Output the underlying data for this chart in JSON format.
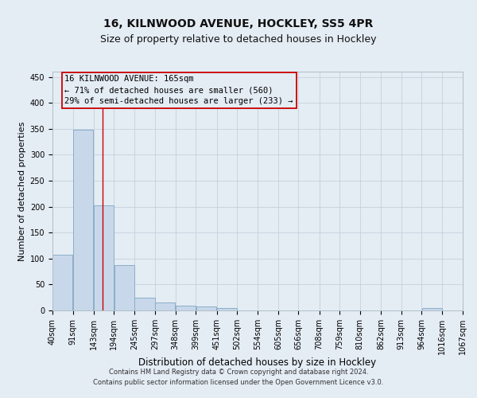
{
  "title": "16, KILNWOOD AVENUE, HOCKLEY, SS5 4PR",
  "subtitle": "Size of property relative to detached houses in Hockley",
  "xlabel": "Distribution of detached houses by size in Hockley",
  "ylabel": "Number of detached properties",
  "bar_edges": [
    40,
    91,
    143,
    194,
    245,
    297,
    348,
    399,
    451,
    502,
    554,
    605,
    656,
    708,
    759,
    810,
    862,
    913,
    964,
    1016,
    1067
  ],
  "bar_heights": [
    107,
    348,
    203,
    88,
    24,
    15,
    9,
    7,
    5,
    0,
    0,
    0,
    0,
    0,
    0,
    0,
    0,
    0,
    4,
    0
  ],
  "bar_color": "#c8d8ea",
  "bar_edgecolor": "#8aaec8",
  "bar_linewidth": 0.7,
  "grid_color": "#c0ccd8",
  "background_color": "#e4ecf4",
  "vline_x": 165,
  "vline_color": "#cc0000",
  "annotation_line1": "16 KILNWOOD AVENUE: 165sqm",
  "annotation_line2": "← 71% of detached houses are smaller (560)",
  "annotation_line3": "29% of semi-detached houses are larger (233) →",
  "annotation_box_edgecolor": "#cc0000",
  "annotation_fontsize": 7.5,
  "ylim": [
    0,
    460
  ],
  "yticks": [
    0,
    50,
    100,
    150,
    200,
    250,
    300,
    350,
    400,
    450
  ],
  "footer_line1": "Contains HM Land Registry data © Crown copyright and database right 2024.",
  "footer_line2": "Contains public sector information licensed under the Open Government Licence v3.0.",
  "title_fontsize": 10,
  "subtitle_fontsize": 9,
  "xlabel_fontsize": 8.5,
  "ylabel_fontsize": 8,
  "tick_fontsize": 7
}
